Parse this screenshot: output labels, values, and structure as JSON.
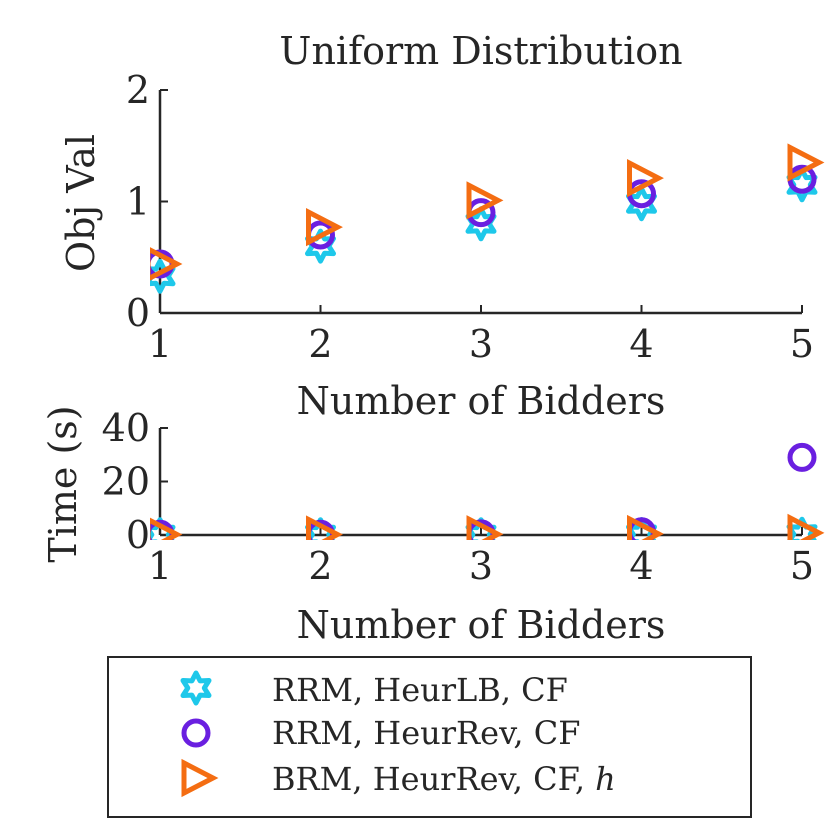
{
  "chart_data": [
    {
      "type": "scatter",
      "title": "Uniform Distribution",
      "xlabel": "Number of Bidders",
      "ylabel": "Obj Val",
      "xlim": [
        1,
        5
      ],
      "ylim": [
        0,
        2
      ],
      "xticks": [
        "1",
        "2",
        "3",
        "4",
        "5"
      ],
      "yticks": [
        "0",
        "1",
        "2"
      ],
      "x": [
        1,
        2,
        3,
        4,
        5
      ],
      "series": [
        {
          "name": "RRM, HeurLB, CF",
          "marker": "hexagram",
          "color": "#1ec8ea",
          "values": [
            0.33,
            0.6,
            0.8,
            0.98,
            1.15
          ]
        },
        {
          "name": "RRM, HeurRev, CF",
          "marker": "circle",
          "color": "#6a1fe0",
          "values": [
            0.44,
            0.7,
            0.9,
            1.07,
            1.2
          ]
        },
        {
          "name": "BRM, HeurRev, CF, h",
          "marker": "triangle-right",
          "color": "#f46d12",
          "values": [
            0.44,
            0.77,
            1.01,
            1.21,
            1.35
          ]
        }
      ]
    },
    {
      "type": "scatter",
      "title": "",
      "xlabel": "Number of Bidders",
      "ylabel": "Time (s)",
      "xlim": [
        1,
        5
      ],
      "ylim": [
        0,
        40
      ],
      "xticks": [
        "1",
        "2",
        "3",
        "4",
        "5"
      ],
      "yticks": [
        "0",
        "20",
        "40"
      ],
      "x": [
        1,
        2,
        3,
        4,
        5
      ],
      "series": [
        {
          "name": "RRM, HeurLB, CF",
          "marker": "hexagram",
          "color": "#1ec8ea",
          "values": [
            0.1,
            0.1,
            0.1,
            0.2,
            0.3
          ]
        },
        {
          "name": "RRM, HeurRev, CF",
          "marker": "circle",
          "color": "#6a1fe0",
          "values": [
            0.3,
            0.3,
            0.4,
            1.2,
            29
          ]
        },
        {
          "name": "BRM, HeurRev, CF, h",
          "marker": "triangle-right",
          "color": "#f46d12",
          "values": [
            0.2,
            0.2,
            0.3,
            0.4,
            0.8
          ]
        }
      ]
    }
  ],
  "legend": {
    "placement": "bottom",
    "entries": [
      {
        "label": "RRM, HeurLB, CF",
        "suffix": ""
      },
      {
        "label": "RRM, HeurRev, CF",
        "suffix": ""
      },
      {
        "label": "BRM, HeurRev, CF, ",
        "suffix": "h"
      }
    ]
  }
}
